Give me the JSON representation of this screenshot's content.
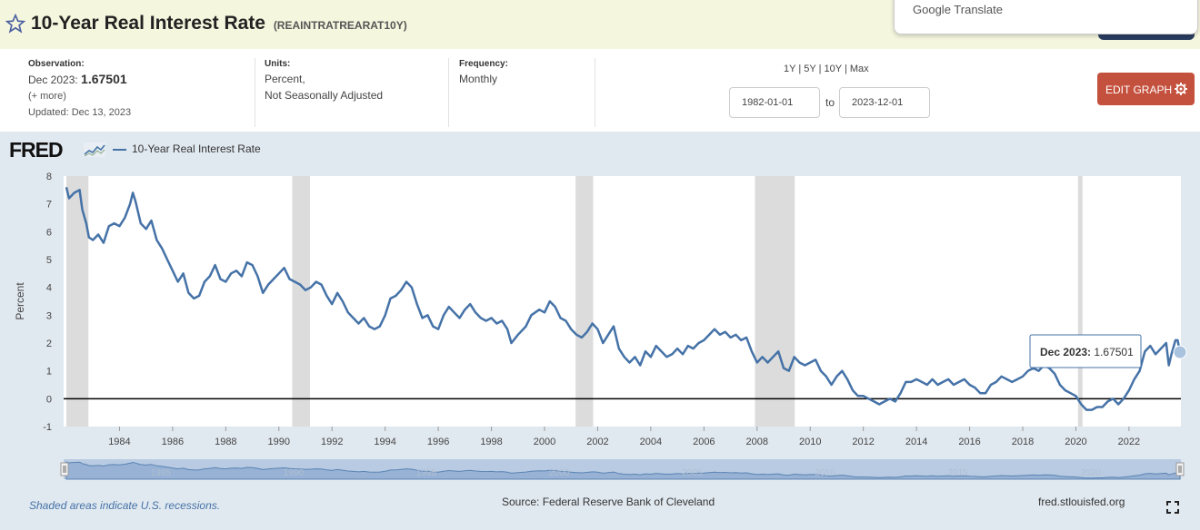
{
  "header": {
    "title": "10-Year Real Interest Rate",
    "series_id": "(REAINTRATREARAT10Y)"
  },
  "google_translate": {
    "label": "Google Translate"
  },
  "info": {
    "observation_label": "Observation:",
    "observation_date": "Dec 2023:",
    "observation_value": "1.67501",
    "more": "(+ more)",
    "updated": "Updated: Dec 13, 2023",
    "units_label": "Units:",
    "units_line1": "Percent,",
    "units_line2": "Not Seasonally Adjusted",
    "frequency_label": "Frequency:",
    "frequency_value": "Monthly",
    "ranges": [
      "1Y",
      "5Y",
      "10Y",
      "Max"
    ],
    "range_sep": "|",
    "start_date": "1982-01-01",
    "to_label": "to",
    "end_date": "2023-12-01",
    "edit_graph_label": "EDIT GRAPH"
  },
  "legend": {
    "logo": "FRED",
    "series_name": "10-Year Real Interest Rate"
  },
  "chart_data": {
    "type": "line",
    "ylabel": "Percent",
    "ylim": [
      -1,
      8
    ],
    "y_ticks": [
      -1,
      0,
      1,
      2,
      3,
      4,
      5,
      6,
      7,
      8
    ],
    "x_ticks": [
      1984,
      1986,
      1988,
      1990,
      1992,
      1994,
      1996,
      1998,
      2000,
      2002,
      2004,
      2006,
      2008,
      2010,
      2012,
      2014,
      2016,
      2018,
      2020,
      2022
    ],
    "x_range": [
      1982.0,
      2023.92
    ],
    "recessions": [
      [
        1982.0,
        1982.83
      ],
      [
        1990.5,
        1991.17
      ],
      [
        2001.17,
        2001.83
      ],
      [
        2007.92,
        2009.42
      ],
      [
        2020.08,
        2020.25
      ]
    ],
    "series": [
      {
        "name": "10-Year Real Interest Rate",
        "color": "#4572a7",
        "points": [
          [
            1982.0,
            7.6
          ],
          [
            1982.1,
            7.2
          ],
          [
            1982.3,
            7.4
          ],
          [
            1982.5,
            7.5
          ],
          [
            1982.6,
            6.8
          ],
          [
            1982.75,
            6.3
          ],
          [
            1982.85,
            5.8
          ],
          [
            1983.0,
            5.7
          ],
          [
            1983.2,
            5.9
          ],
          [
            1983.4,
            5.6
          ],
          [
            1983.6,
            6.2
          ],
          [
            1983.8,
            6.3
          ],
          [
            1984.0,
            6.2
          ],
          [
            1984.2,
            6.5
          ],
          [
            1984.4,
            7.0
          ],
          [
            1984.5,
            7.4
          ],
          [
            1984.6,
            7.1
          ],
          [
            1984.8,
            6.3
          ],
          [
            1985.0,
            6.1
          ],
          [
            1985.2,
            6.4
          ],
          [
            1985.4,
            5.7
          ],
          [
            1985.6,
            5.4
          ],
          [
            1985.8,
            5.0
          ],
          [
            1986.0,
            4.6
          ],
          [
            1986.2,
            4.2
          ],
          [
            1986.4,
            4.5
          ],
          [
            1986.6,
            3.8
          ],
          [
            1986.8,
            3.6
          ],
          [
            1987.0,
            3.7
          ],
          [
            1987.2,
            4.2
          ],
          [
            1987.4,
            4.4
          ],
          [
            1987.6,
            4.8
          ],
          [
            1987.8,
            4.3
          ],
          [
            1988.0,
            4.2
          ],
          [
            1988.2,
            4.5
          ],
          [
            1988.4,
            4.6
          ],
          [
            1988.6,
            4.4
          ],
          [
            1988.8,
            4.9
          ],
          [
            1989.0,
            4.8
          ],
          [
            1989.2,
            4.4
          ],
          [
            1989.4,
            3.8
          ],
          [
            1989.6,
            4.1
          ],
          [
            1989.8,
            4.3
          ],
          [
            1990.0,
            4.5
          ],
          [
            1990.2,
            4.7
          ],
          [
            1990.4,
            4.3
          ],
          [
            1990.6,
            4.2
          ],
          [
            1990.8,
            4.1
          ],
          [
            1991.0,
            3.9
          ],
          [
            1991.2,
            4.0
          ],
          [
            1991.4,
            4.2
          ],
          [
            1991.6,
            4.1
          ],
          [
            1991.8,
            3.7
          ],
          [
            1992.0,
            3.4
          ],
          [
            1992.2,
            3.8
          ],
          [
            1992.4,
            3.5
          ],
          [
            1992.6,
            3.1
          ],
          [
            1992.8,
            2.9
          ],
          [
            1993.0,
            2.7
          ],
          [
            1993.2,
            2.9
          ],
          [
            1993.4,
            2.6
          ],
          [
            1993.6,
            2.5
          ],
          [
            1993.8,
            2.6
          ],
          [
            1994.0,
            3.0
          ],
          [
            1994.2,
            3.6
          ],
          [
            1994.4,
            3.7
          ],
          [
            1994.6,
            3.9
          ],
          [
            1994.8,
            4.2
          ],
          [
            1995.0,
            4.0
          ],
          [
            1995.2,
            3.4
          ],
          [
            1995.4,
            2.9
          ],
          [
            1995.6,
            3.0
          ],
          [
            1995.8,
            2.6
          ],
          [
            1996.0,
            2.5
          ],
          [
            1996.2,
            3.0
          ],
          [
            1996.4,
            3.3
          ],
          [
            1996.6,
            3.1
          ],
          [
            1996.8,
            2.9
          ],
          [
            1997.0,
            3.2
          ],
          [
            1997.2,
            3.4
          ],
          [
            1997.4,
            3.1
          ],
          [
            1997.6,
            2.9
          ],
          [
            1997.8,
            2.8
          ],
          [
            1998.0,
            2.9
          ],
          [
            1998.2,
            2.7
          ],
          [
            1998.4,
            2.8
          ],
          [
            1998.6,
            2.5
          ],
          [
            1998.75,
            2.0
          ],
          [
            1999.0,
            2.3
          ],
          [
            1999.3,
            2.6
          ],
          [
            1999.5,
            3.0
          ],
          [
            1999.8,
            3.2
          ],
          [
            2000.0,
            3.1
          ],
          [
            2000.2,
            3.5
          ],
          [
            2000.4,
            3.3
          ],
          [
            2000.6,
            2.9
          ],
          [
            2000.8,
            2.8
          ],
          [
            2001.0,
            2.5
          ],
          [
            2001.2,
            2.3
          ],
          [
            2001.4,
            2.2
          ],
          [
            2001.6,
            2.4
          ],
          [
            2001.8,
            2.7
          ],
          [
            2002.0,
            2.5
          ],
          [
            2002.2,
            2.0
          ],
          [
            2002.4,
            2.3
          ],
          [
            2002.6,
            2.6
          ],
          [
            2002.8,
            1.8
          ],
          [
            2003.0,
            1.5
          ],
          [
            2003.2,
            1.3
          ],
          [
            2003.4,
            1.5
          ],
          [
            2003.6,
            1.2
          ],
          [
            2003.8,
            1.7
          ],
          [
            2004.0,
            1.5
          ],
          [
            2004.2,
            1.9
          ],
          [
            2004.4,
            1.7
          ],
          [
            2004.6,
            1.5
          ],
          [
            2004.8,
            1.6
          ],
          [
            2005.0,
            1.8
          ],
          [
            2005.2,
            1.6
          ],
          [
            2005.4,
            1.9
          ],
          [
            2005.6,
            1.8
          ],
          [
            2005.8,
            2.0
          ],
          [
            2006.0,
            2.1
          ],
          [
            2006.2,
            2.3
          ],
          [
            2006.4,
            2.5
          ],
          [
            2006.6,
            2.3
          ],
          [
            2006.8,
            2.4
          ],
          [
            2007.0,
            2.2
          ],
          [
            2007.2,
            2.3
          ],
          [
            2007.4,
            2.1
          ],
          [
            2007.6,
            2.2
          ],
          [
            2007.8,
            1.7
          ],
          [
            2008.0,
            1.3
          ],
          [
            2008.2,
            1.5
          ],
          [
            2008.4,
            1.3
          ],
          [
            2008.6,
            1.5
          ],
          [
            2008.8,
            1.7
          ],
          [
            2009.0,
            1.1
          ],
          [
            2009.2,
            1.0
          ],
          [
            2009.4,
            1.5
          ],
          [
            2009.6,
            1.3
          ],
          [
            2009.8,
            1.2
          ],
          [
            2010.0,
            1.3
          ],
          [
            2010.2,
            1.4
          ],
          [
            2010.4,
            1.0
          ],
          [
            2010.6,
            0.8
          ],
          [
            2010.8,
            0.5
          ],
          [
            2011.0,
            0.8
          ],
          [
            2011.2,
            1.0
          ],
          [
            2011.4,
            0.7
          ],
          [
            2011.6,
            0.3
          ],
          [
            2011.8,
            0.1
          ],
          [
            2012.0,
            0.1
          ],
          [
            2012.2,
            0.0
          ],
          [
            2012.4,
            -0.1
          ],
          [
            2012.6,
            -0.2
          ],
          [
            2012.8,
            -0.1
          ],
          [
            2013.0,
            0.0
          ],
          [
            2013.2,
            -0.1
          ],
          [
            2013.4,
            0.2
          ],
          [
            2013.6,
            0.6
          ],
          [
            2013.8,
            0.6
          ],
          [
            2014.0,
            0.7
          ],
          [
            2014.2,
            0.6
          ],
          [
            2014.4,
            0.5
          ],
          [
            2014.6,
            0.7
          ],
          [
            2014.8,
            0.5
          ],
          [
            2015.0,
            0.6
          ],
          [
            2015.2,
            0.7
          ],
          [
            2015.4,
            0.5
          ],
          [
            2015.6,
            0.6
          ],
          [
            2015.8,
            0.7
          ],
          [
            2016.0,
            0.5
          ],
          [
            2016.2,
            0.4
          ],
          [
            2016.4,
            0.2
          ],
          [
            2016.6,
            0.2
          ],
          [
            2016.8,
            0.5
          ],
          [
            2017.0,
            0.6
          ],
          [
            2017.2,
            0.8
          ],
          [
            2017.4,
            0.7
          ],
          [
            2017.6,
            0.6
          ],
          [
            2017.8,
            0.7
          ],
          [
            2018.0,
            0.8
          ],
          [
            2018.2,
            1.0
          ],
          [
            2018.4,
            1.1
          ],
          [
            2018.6,
            1.0
          ],
          [
            2018.8,
            1.2
          ],
          [
            2019.0,
            1.1
          ],
          [
            2019.2,
            0.9
          ],
          [
            2019.4,
            0.5
          ],
          [
            2019.6,
            0.3
          ],
          [
            2019.8,
            0.2
          ],
          [
            2020.0,
            0.1
          ],
          [
            2020.2,
            -0.2
          ],
          [
            2020.4,
            -0.4
          ],
          [
            2020.6,
            -0.4
          ],
          [
            2020.8,
            -0.3
          ],
          [
            2021.0,
            -0.3
          ],
          [
            2021.2,
            -0.1
          ],
          [
            2021.4,
            0.0
          ],
          [
            2021.6,
            -0.2
          ],
          [
            2021.8,
            0.0
          ],
          [
            2022.0,
            0.3
          ],
          [
            2022.2,
            0.7
          ],
          [
            2022.4,
            1.0
          ],
          [
            2022.6,
            1.7
          ],
          [
            2022.8,
            1.9
          ],
          [
            2023.0,
            1.6
          ],
          [
            2023.2,
            1.8
          ],
          [
            2023.4,
            2.0
          ],
          [
            2023.5,
            1.2
          ],
          [
            2023.6,
            1.6
          ],
          [
            2023.75,
            2.1
          ],
          [
            2023.83,
            2.1
          ],
          [
            2023.92,
            1.67501
          ]
        ]
      }
    ],
    "tooltip": {
      "label": "Dec 2023:",
      "value": "1.67501"
    },
    "navigator_ticks": [
      "1985",
      "1990",
      "1995",
      "2000",
      "2005",
      "2010",
      "2015",
      "2020"
    ],
    "navigator_tick_years": [
      1985,
      1990,
      1995,
      2000,
      2005,
      2010,
      2015,
      2020
    ]
  },
  "footer": {
    "recession_note": "Shaded areas indicate U.S. recessions.",
    "source": "Source: Federal Reserve Bank of Cleveland",
    "site": "fred.stlouisfed.org"
  },
  "colors": {
    "line": "#4572a7",
    "edit_button": "#c4513d",
    "header_bg": "#f5f6de",
    "recession": "#dcdcdc"
  }
}
